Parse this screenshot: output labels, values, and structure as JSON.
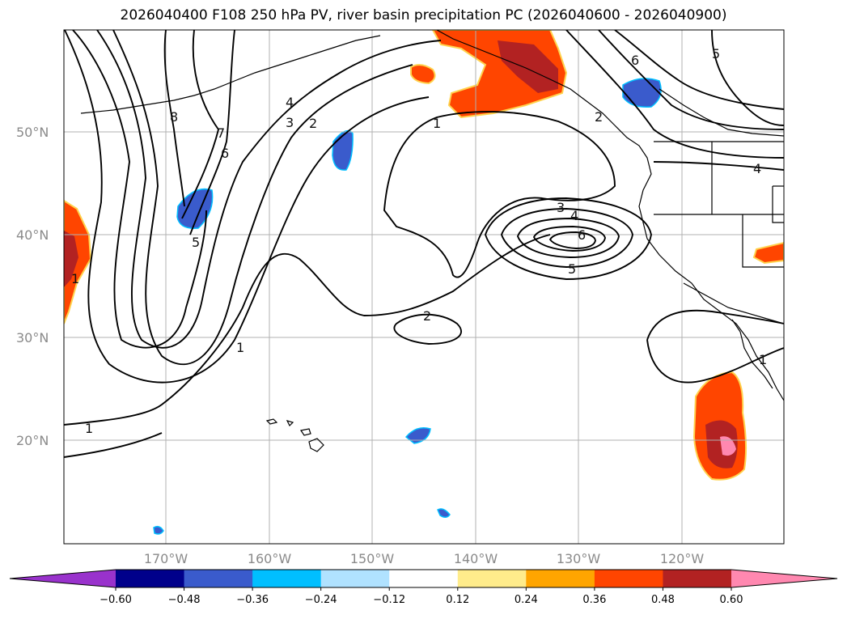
{
  "title": "2026040400 F108 250 hPa PV, river basin precipitation PC (2026040600 - 2026040900)",
  "lat_labels": [
    "50°N",
    "40°N",
    "30°N",
    "20°N"
  ],
  "lon_labels": [
    "170°W",
    "160°W",
    "150°W",
    "140°W",
    "130°W",
    "120°W"
  ],
  "colorbar": {
    "colors": [
      "#9932cc",
      "#00008b",
      "#3a5bcc",
      "#00bfff",
      "#b0e2ff",
      "#ffffff",
      "#ffec8b",
      "#ffa500",
      "#ff4500",
      "#b22222",
      "#ff88b0"
    ],
    "ticks": [
      "−0.60",
      "−0.48",
      "−0.36",
      "−0.24",
      "−0.12",
      "0.12",
      "0.24",
      "0.36",
      "0.48",
      "0.60"
    ]
  },
  "contour_labels": [
    "8",
    "7",
    "6",
    "5",
    "4",
    "3",
    "2",
    "1",
    "2",
    "1",
    "3",
    "4",
    "6",
    "5",
    "2",
    "1",
    "1",
    "4",
    "5",
    "6",
    "1"
  ]
}
